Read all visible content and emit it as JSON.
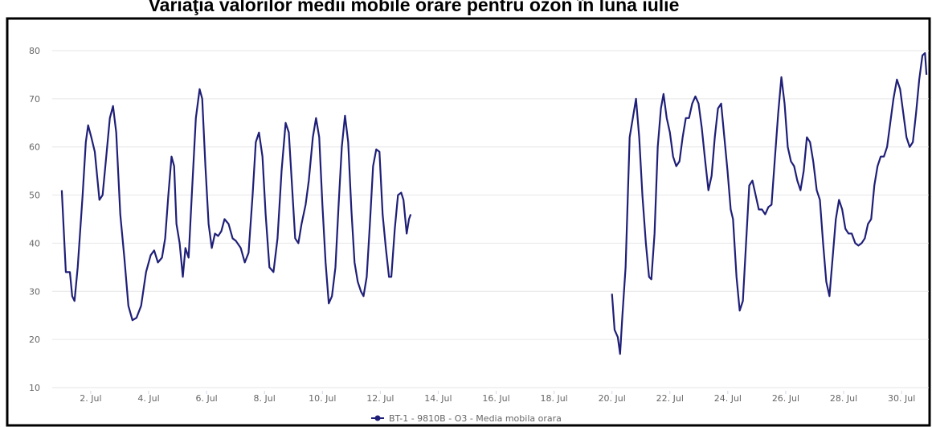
{
  "chart_data": {
    "type": "line",
    "title": "Variaţia valorilor medii mobile orare pentru ozon în luna iulie",
    "x": [
      1.0,
      1.14,
      1.28,
      1.36,
      1.44,
      1.55,
      1.72,
      1.83,
      1.91,
      2.02,
      2.14,
      2.22,
      2.3,
      2.41,
      2.52,
      2.66,
      2.77,
      2.88,
      3.02,
      3.16,
      3.3,
      3.44,
      3.58,
      3.74,
      3.91,
      4.07,
      4.19,
      4.32,
      4.46,
      4.57,
      4.68,
      4.79,
      4.88,
      4.96,
      5.07,
      5.18,
      5.27,
      5.38,
      5.49,
      5.63,
      5.76,
      5.85,
      5.96,
      6.07,
      6.18,
      6.29,
      6.4,
      6.51,
      6.62,
      6.76,
      6.9,
      7.01,
      7.18,
      7.32,
      7.45,
      7.59,
      7.7,
      7.81,
      7.93,
      8.04,
      8.17,
      8.31,
      8.45,
      8.59,
      8.73,
      8.84,
      8.95,
      9.06,
      9.17,
      9.28,
      9.42,
      9.53,
      9.67,
      9.78,
      9.89,
      10.0,
      10.11,
      10.22,
      10.33,
      10.45,
      10.56,
      10.67,
      10.78,
      10.89,
      11.0,
      11.11,
      11.22,
      11.33,
      11.42,
      11.53,
      11.64,
      11.75,
      11.86,
      11.97,
      12.08,
      12.19,
      12.3,
      12.38,
      12.5,
      12.61,
      12.72,
      12.8,
      12.91,
      12.99,
      13.05,
      16.5,
      20.0,
      20.09,
      20.2,
      20.28,
      20.36,
      20.47,
      20.61,
      20.72,
      20.83,
      20.94,
      21.05,
      21.17,
      21.28,
      21.36,
      21.47,
      21.58,
      21.69,
      21.78,
      21.89,
      22.0,
      22.11,
      22.22,
      22.33,
      22.44,
      22.55,
      22.66,
      22.77,
      22.88,
      22.99,
      23.1,
      23.22,
      23.33,
      23.44,
      23.55,
      23.66,
      23.77,
      23.88,
      23.99,
      24.1,
      24.18,
      24.3,
      24.41,
      24.52,
      24.63,
      24.74,
      24.85,
      24.96,
      25.07,
      25.18,
      25.29,
      25.4,
      25.51,
      25.63,
      25.74,
      25.85,
      25.96,
      26.07,
      26.18,
      26.29,
      26.4,
      26.51,
      26.62,
      26.73,
      26.84,
      26.95,
      27.07,
      27.18,
      27.29,
      27.4,
      27.51,
      27.62,
      27.73,
      27.84,
      27.95,
      28.06,
      28.17,
      28.28,
      28.4,
      28.51,
      28.62,
      28.73,
      28.84,
      28.95,
      29.06,
      29.17,
      29.28,
      29.39,
      29.5,
      29.61,
      29.72,
      29.84,
      29.95,
      30.06,
      30.17,
      30.28,
      30.39,
      30.5,
      30.61,
      30.72,
      30.81,
      30.86
    ],
    "series": [
      {
        "name": "BT-1 - 9810B - O3 - Media mobila orara",
        "color": "#1f1f78",
        "values": [
          51,
          34,
          34,
          29,
          28,
          35,
          50,
          61,
          64.5,
          62,
          59,
          54,
          49,
          50,
          57,
          66,
          68.5,
          63,
          46,
          37,
          27,
          24,
          24.5,
          27,
          34,
          37.5,
          38.5,
          36,
          37,
          41,
          50,
          58,
          56,
          44,
          40,
          33,
          39,
          37,
          50,
          66,
          72,
          70,
          56,
          44,
          39,
          42,
          41.5,
          42.5,
          45,
          44,
          41,
          40.5,
          39,
          36,
          38,
          50,
          61,
          63,
          58,
          46,
          35,
          34,
          41,
          55,
          65,
          63,
          52,
          41,
          40,
          44,
          48,
          53,
          62,
          66,
          62,
          48,
          36,
          27.5,
          29,
          35,
          48,
          60,
          66.5,
          61,
          47,
          36,
          32,
          30,
          29,
          33,
          44,
          56,
          59.5,
          59,
          46,
          39,
          33,
          33,
          43,
          50,
          50.5,
          49,
          42,
          45,
          46,
          null,
          29.5,
          22,
          20.5,
          17,
          25,
          35,
          62,
          66,
          70,
          62,
          50,
          40,
          33,
          32.5,
          42,
          60,
          68,
          71,
          66,
          63,
          58,
          56,
          57,
          62,
          66,
          66,
          69,
          70.5,
          69,
          64,
          57,
          51,
          54,
          62,
          68,
          69,
          62,
          55,
          47,
          45,
          33,
          26,
          28,
          40,
          52,
          53,
          50,
          47,
          47,
          46,
          47.5,
          48,
          58,
          67,
          74.5,
          69,
          60,
          57,
          56,
          53,
          51,
          55,
          62,
          61,
          57,
          51,
          49,
          40,
          32,
          29,
          37,
          45,
          49,
          47,
          43,
          42,
          42,
          40,
          39.5,
          40,
          41,
          44,
          45,
          52,
          56,
          58,
          58,
          60,
          65,
          70,
          74,
          72,
          67,
          62,
          60,
          61,
          67,
          74,
          79,
          79.5,
          75
        ]
      }
    ],
    "xlim": [
      0.67,
      30.94
    ],
    "ylim": [
      10,
      80
    ],
    "xticks": [
      {
        "value": 2,
        "label": "2. Jul"
      },
      {
        "value": 4,
        "label": "4. Jul"
      },
      {
        "value": 6,
        "label": "6. Jul"
      },
      {
        "value": 8,
        "label": "8. Jul"
      },
      {
        "value": 10,
        "label": "10. Jul"
      },
      {
        "value": 12,
        "label": "12. Jul"
      },
      {
        "value": 14,
        "label": "14. Jul"
      },
      {
        "value": 16,
        "label": "16. Jul"
      },
      {
        "value": 18,
        "label": "18. Jul"
      },
      {
        "value": 20,
        "label": "20. Jul"
      },
      {
        "value": 22,
        "label": "22. Jul"
      },
      {
        "value": 24,
        "label": "24. Jul"
      },
      {
        "value": 26,
        "label": "26. Jul"
      },
      {
        "value": 28,
        "label": "28. Jul"
      },
      {
        "value": 30,
        "label": "30. Jul"
      }
    ],
    "yticks": [
      10,
      20,
      30,
      40,
      50,
      60,
      70,
      80
    ],
    "grid": true
  }
}
